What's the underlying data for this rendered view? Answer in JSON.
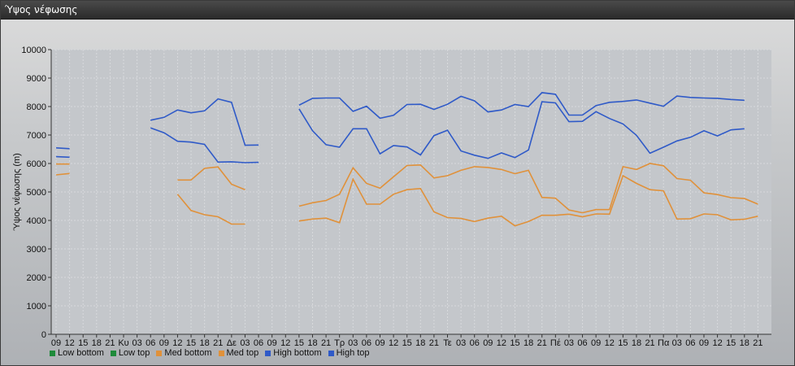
{
  "window": {
    "title": "Ύψος νέφωσης"
  },
  "chart_data": {
    "type": "line",
    "title": "Ύψος νέφωσης",
    "xlabel": "",
    "ylabel": "Ύψος νέφωσης (m)",
    "ylim": [
      0,
      10000
    ],
    "yticks": [
      0,
      1000,
      2000,
      3000,
      4000,
      5000,
      6000,
      7000,
      8000,
      9000,
      10000
    ],
    "grid": true,
    "legend_position": "bottom-left",
    "x_tick_labels": [
      "09",
      "12",
      "15",
      "18",
      "21",
      "Κυ",
      "03",
      "06",
      "09",
      "12",
      "15",
      "18",
      "21",
      "Δε",
      "03",
      "06",
      "09",
      "12",
      "15",
      "18",
      "21",
      "Τρ",
      "03",
      "06",
      "09",
      "12",
      "15",
      "18",
      "21",
      "Τε",
      "03",
      "06",
      "09",
      "12",
      "15",
      "18",
      "21",
      "Πέ",
      "03",
      "06",
      "09",
      "12",
      "15",
      "18",
      "21",
      "Πα",
      "03",
      "06",
      "09",
      "12",
      "15",
      "18",
      "21"
    ],
    "series": [
      {
        "name": "Low bottom",
        "color": "#1e8a3a",
        "values": []
      },
      {
        "name": "Low top",
        "color": "#1e8a3a",
        "values": []
      },
      {
        "name": "Med bottom",
        "color": "#e0913a",
        "values": [
          5600,
          5650,
          null,
          null,
          null,
          null,
          null,
          null,
          null,
          4920,
          4350,
          4200,
          4130,
          3870,
          3870,
          null,
          null,
          null,
          3980,
          4050,
          4080,
          3920,
          5450,
          4570,
          4570,
          4920,
          5080,
          5120,
          4300,
          4100,
          4070,
          3960,
          4080,
          4150,
          3810,
          3960,
          4180,
          4180,
          4220,
          4130,
          4230,
          4220,
          5570,
          5300,
          5080,
          5040,
          4050,
          4060,
          4230,
          4200,
          4020,
          4040,
          4150
        ]
      },
      {
        "name": "Med top",
        "color": "#e0913a",
        "values": [
          5980,
          5980,
          null,
          null,
          null,
          null,
          null,
          null,
          null,
          5420,
          5420,
          5830,
          5880,
          5270,
          5080,
          null,
          null,
          null,
          4500,
          4620,
          4700,
          4920,
          5850,
          5300,
          5130,
          5530,
          5930,
          5950,
          5490,
          5570,
          5760,
          5890,
          5860,
          5790,
          5640,
          5760,
          4810,
          4780,
          4370,
          4270,
          4380,
          4380,
          5890,
          5790,
          6000,
          5920,
          5470,
          5410,
          4970,
          4910,
          4800,
          4770,
          4570
        ]
      },
      {
        "name": "High bottom",
        "color": "#2f5ac8",
        "values": [
          6240,
          6220,
          null,
          null,
          null,
          null,
          null,
          7250,
          7080,
          6780,
          6750,
          6670,
          6050,
          6060,
          6030,
          6040,
          null,
          null,
          7920,
          7150,
          6660,
          6570,
          7220,
          7220,
          6340,
          6630,
          6580,
          6300,
          6980,
          7170,
          6440,
          6290,
          6180,
          6370,
          6210,
          6470,
          8170,
          8130,
          7470,
          7480,
          7820,
          7580,
          7390,
          6990,
          6360,
          6570,
          6790,
          6920,
          7150,
          6970,
          7180,
          7220,
          null
        ]
      },
      {
        "name": "High top",
        "color": "#2f5ac8",
        "values": [
          6550,
          6520,
          null,
          null,
          null,
          null,
          null,
          7520,
          7620,
          7880,
          7780,
          7850,
          8270,
          8150,
          6640,
          6650,
          null,
          null,
          8050,
          8290,
          8300,
          8300,
          7830,
          8010,
          7590,
          7690,
          8070,
          8080,
          7900,
          8080,
          8360,
          8200,
          7810,
          7880,
          8070,
          8000,
          8490,
          8430,
          7700,
          7700,
          8030,
          8150,
          8180,
          8230,
          8120,
          8010,
          8370,
          8320,
          8300,
          8290,
          8250,
          8220,
          null
        ]
      }
    ]
  }
}
